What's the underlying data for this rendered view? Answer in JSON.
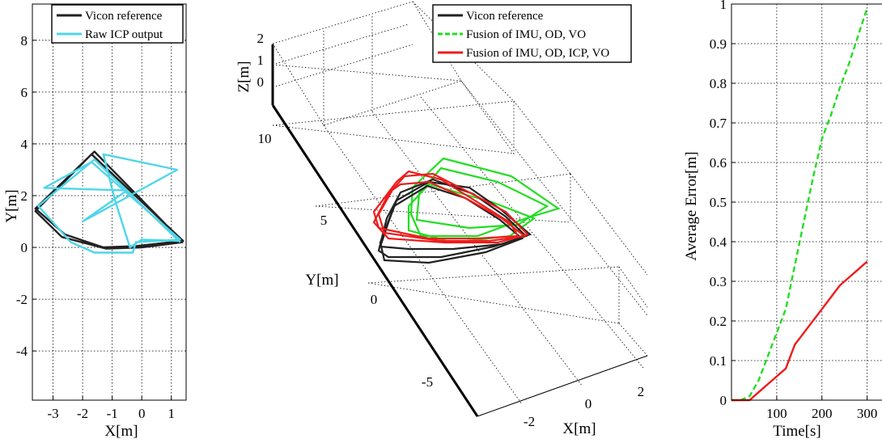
{
  "colors": {
    "vicon": "#222222",
    "icp": "#4fd6e8",
    "fusion_vo": "#22dd22",
    "fusion_icp": "#ee1c1c"
  },
  "chart_data": [
    {
      "type": "line",
      "xlabel": "X[m]",
      "ylabel": "Y[m]",
      "xlim": [
        -3.7,
        1.5
      ],
      "ylim": [
        -5.9,
        9.4
      ],
      "xticks": [
        -3,
        -2,
        -1,
        0,
        1
      ],
      "yticks": [
        -4,
        -2,
        0,
        2,
        4,
        6,
        8
      ],
      "grid": true,
      "legend": "top",
      "series": [
        {
          "name": "Vicon reference",
          "color_key": "vicon",
          "x": [
            1.4,
            -1.6,
            -3.6,
            -2.6,
            -1.3,
            -0.2,
            1.4,
            -1.7,
            -3.6,
            -2.7,
            -1.2,
            0.0,
            1.4
          ],
          "y": [
            0.2,
            3.7,
            1.5,
            0.5,
            0.0,
            0.05,
            0.25,
            3.6,
            1.4,
            0.4,
            -0.05,
            0.0,
            0.2
          ]
        },
        {
          "name": "Raw ICP output",
          "color_key": "icp",
          "x": [
            1.3,
            -1.6,
            -3.5,
            -2.4,
            -1.6,
            -0.3,
            -0.2,
            1.3,
            -1.7,
            -3.3,
            -0.5,
            -2.0,
            1.2,
            -1.3,
            -0.9,
            -0.4,
            0.0,
            1.3
          ],
          "y": [
            0.2,
            3.4,
            1.6,
            0.2,
            -0.2,
            -0.2,
            0.2,
            0.3,
            3.3,
            2.3,
            2.2,
            1.0,
            3.0,
            3.6,
            1.8,
            0.0,
            0.3,
            0.25
          ]
        }
      ]
    },
    {
      "type": "line",
      "xlabel": "X[m]",
      "ylabel": "Y[m]",
      "zlabel": "Z[m]",
      "xticks": [
        -2,
        0,
        2
      ],
      "yticks": [
        -5,
        0,
        5,
        10
      ],
      "zticks": [
        0,
        1,
        2
      ],
      "grid": true,
      "legend": "top",
      "series": [
        {
          "name": "Vicon reference",
          "color_key": "vicon"
        },
        {
          "name": "Fusion of IMU, OD, VO",
          "color_key": "fusion_vo",
          "dashed": true
        },
        {
          "name": "Fusion of IMU, OD, ICP, VO",
          "color_key": "fusion_icp"
        }
      ]
    },
    {
      "type": "line",
      "xlabel": "Time[s]",
      "ylabel": "Average Error[m]",
      "xlim": [
        0,
        340
      ],
      "ylim": [
        0,
        1
      ],
      "xticks": [
        100,
        200,
        300
      ],
      "yticks": [
        0,
        0.1,
        0.2,
        0.3,
        0.4,
        0.5,
        0.6,
        0.7,
        0.8,
        0.9,
        1
      ],
      "grid": true,
      "series": [
        {
          "name": "Fusion of IMU, OD, VO",
          "color_key": "fusion_vo",
          "dashed": true,
          "x": [
            0,
            20,
            40,
            60,
            80,
            100,
            120,
            140,
            160,
            180,
            200,
            220,
            240,
            260,
            280,
            300
          ],
          "y": [
            0.0,
            0.0,
            0.01,
            0.05,
            0.11,
            0.17,
            0.23,
            0.34,
            0.45,
            0.56,
            0.66,
            0.72,
            0.79,
            0.85,
            0.92,
            0.99
          ]
        },
        {
          "name": "Fusion of IMU, OD, ICP, VO",
          "color_key": "fusion_icp",
          "x": [
            0,
            20,
            40,
            60,
            80,
            100,
            120,
            140,
            160,
            180,
            200,
            220,
            240,
            260,
            280,
            300
          ],
          "y": [
            0.0,
            0.0,
            0.0,
            0.02,
            0.04,
            0.06,
            0.08,
            0.14,
            0.17,
            0.2,
            0.23,
            0.26,
            0.29,
            0.31,
            0.33,
            0.35
          ]
        }
      ]
    }
  ]
}
